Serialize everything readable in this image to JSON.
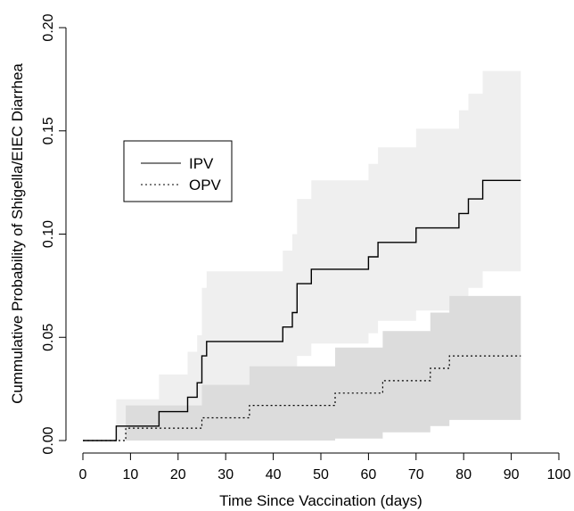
{
  "chart_data": {
    "type": "line",
    "subtype": "step",
    "title": "",
    "xlabel": "Time Since Vaccination (days)",
    "ylabel": "Cummulative Probability of Shigella/EIEC Diarrhea",
    "xlim": [
      0,
      100
    ],
    "ylim": [
      0,
      0.2
    ],
    "x_ticks": [
      0,
      10,
      20,
      30,
      40,
      50,
      60,
      70,
      80,
      90,
      100
    ],
    "x_tick_labels": [
      "0",
      "10",
      "20",
      "30",
      "40",
      "50",
      "60",
      "70",
      "80",
      "90",
      "100"
    ],
    "y_ticks": [
      0,
      0.05,
      0.1,
      0.15,
      0.2
    ],
    "y_tick_labels": [
      "0.00",
      "0.05",
      "0.10",
      "0.15",
      "0.20"
    ],
    "grid": false,
    "legend_position": "upper-left",
    "series": [
      {
        "name": "IPV",
        "line_style": "solid",
        "color": "#000000",
        "band_color": "#efefef",
        "x": [
          0,
          7,
          16,
          22,
          24,
          25,
          26,
          42,
          44,
          45,
          48,
          60,
          62,
          70,
          79,
          81,
          84,
          92
        ],
        "y": [
          0,
          0.007,
          0.014,
          0.021,
          0.028,
          0.041,
          0.048,
          0.055,
          0.062,
          0.076,
          0.083,
          0.089,
          0.096,
          0.103,
          0.11,
          0.117,
          0.126,
          0.126
        ],
        "ci_x": [
          0,
          7,
          16,
          22,
          24,
          25,
          26,
          42,
          44,
          45,
          48,
          60,
          62,
          70,
          79,
          81,
          84,
          92
        ],
        "ci_lower": [
          0,
          0,
          0,
          0.004,
          0.007,
          0.014,
          0.02,
          0.025,
          0.03,
          0.041,
          0.047,
          0.052,
          0.058,
          0.063,
          0.069,
          0.074,
          0.082,
          0.082
        ],
        "ci_upper": [
          0,
          0.02,
          0.032,
          0.043,
          0.051,
          0.074,
          0.082,
          0.092,
          0.1,
          0.117,
          0.126,
          0.134,
          0.142,
          0.151,
          0.16,
          0.168,
          0.179,
          0.179
        ]
      },
      {
        "name": "OPV",
        "line_style": "dotted",
        "color": "#000000",
        "band_color": "#dcdcdc",
        "x": [
          0,
          9,
          10,
          25,
          35,
          53,
          63,
          73,
          77,
          92
        ],
        "y": [
          0,
          0.006,
          0.006,
          0.011,
          0.017,
          0.023,
          0.029,
          0.035,
          0.041,
          0.041
        ],
        "ci_x": [
          0,
          9,
          10,
          25,
          35,
          53,
          63,
          73,
          77,
          92
        ],
        "ci_lower": [
          0,
          0,
          0,
          0,
          0,
          0.001,
          0.004,
          0.007,
          0.01,
          0.01
        ],
        "ci_upper": [
          0,
          0.017,
          0.017,
          0.027,
          0.036,
          0.045,
          0.053,
          0.062,
          0.07,
          0.07
        ]
      }
    ]
  }
}
